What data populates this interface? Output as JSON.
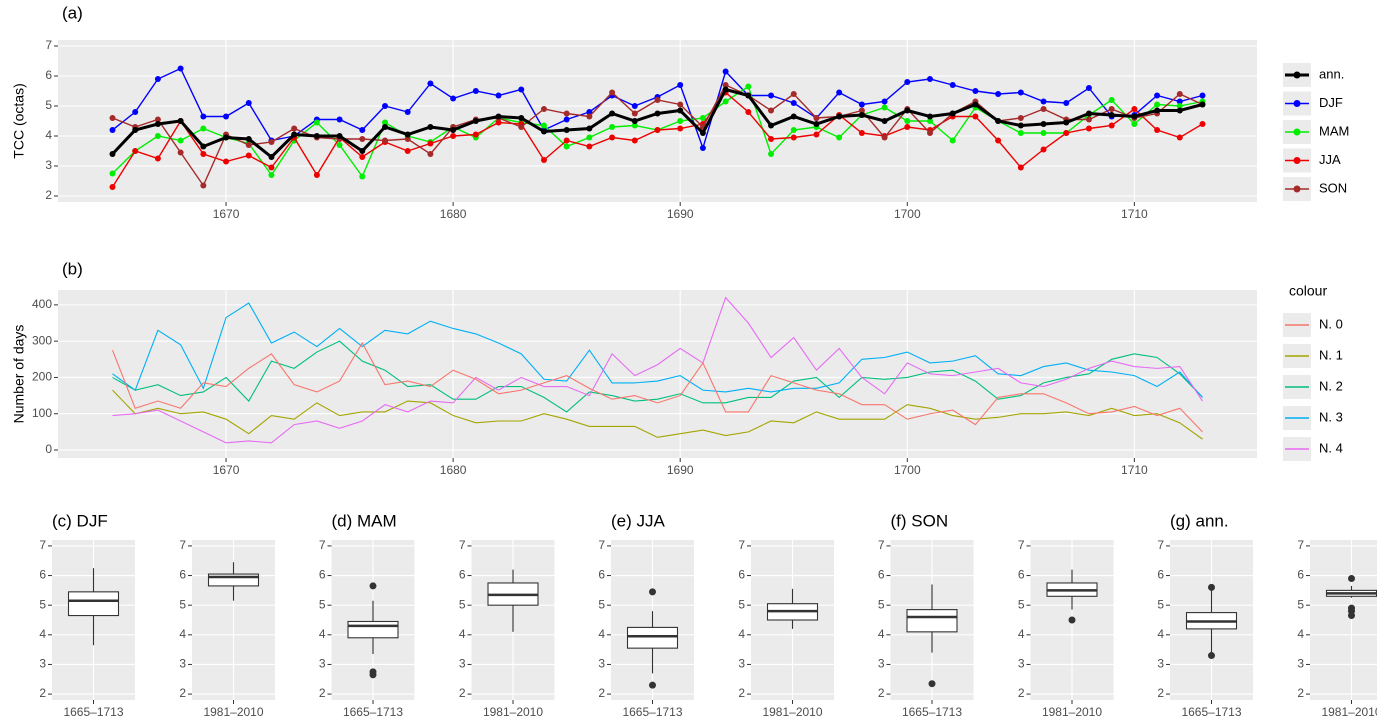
{
  "chart_data": [
    {
      "type": "line",
      "title": "(a)",
      "y_label": "TCC (octas)",
      "points": true,
      "grid": true,
      "x": [
        1665,
        1666,
        1667,
        1668,
        1669,
        1670,
        1671,
        1672,
        1673,
        1674,
        1675,
        1676,
        1677,
        1678,
        1679,
        1680,
        1681,
        1682,
        1683,
        1684,
        1685,
        1686,
        1687,
        1688,
        1689,
        1690,
        1691,
        1692,
        1693,
        1694,
        1695,
        1696,
        1697,
        1698,
        1699,
        1700,
        1701,
        1702,
        1703,
        1704,
        1705,
        1706,
        1707,
        1708,
        1709,
        1710,
        1711,
        1712,
        1713
      ],
      "xlim": [
        1662.6,
        1715.4
      ],
      "xticks": [
        1670,
        1680,
        1690,
        1700,
        1710
      ],
      "ylim": [
        1.8,
        7.2
      ],
      "yticks": [
        2,
        3,
        4,
        5,
        6,
        7
      ],
      "series": [
        {
          "name": "ann.",
          "color": "#000000",
          "values": [
            3.4,
            4.2,
            4.4,
            4.5,
            3.65,
            3.95,
            3.9,
            3.3,
            4.05,
            4.0,
            4.0,
            3.5,
            4.3,
            4.05,
            4.3,
            4.2,
            4.5,
            4.65,
            4.6,
            4.15,
            4.2,
            4.25,
            4.75,
            4.5,
            4.75,
            4.85,
            4.1,
            5.55,
            5.35,
            4.35,
            4.65,
            4.4,
            4.65,
            4.7,
            4.5,
            4.85,
            4.65,
            4.75,
            5.05,
            4.5,
            4.35,
            4.4,
            4.45,
            4.75,
            4.7,
            4.65,
            4.85,
            4.85,
            5.05
          ]
        },
        {
          "name": "DJF",
          "color": "#0000ff",
          "values": [
            4.2,
            4.8,
            5.9,
            6.25,
            4.65,
            4.65,
            5.1,
            3.85,
            4.0,
            4.55,
            4.55,
            4.2,
            5.0,
            4.8,
            5.75,
            5.25,
            5.5,
            5.35,
            5.55,
            4.2,
            4.55,
            4.8,
            5.35,
            5.0,
            5.3,
            5.7,
            3.6,
            6.15,
            5.35,
            5.35,
            5.1,
            4.6,
            5.45,
            5.05,
            5.15,
            5.8,
            5.9,
            5.7,
            5.5,
            5.4,
            5.45,
            5.15,
            5.1,
            5.6,
            4.65,
            4.7,
            5.35,
            5.15,
            5.35
          ]
        },
        {
          "name": "MAM",
          "color": "#00ee00",
          "values": [
            2.75,
            3.5,
            4.0,
            3.85,
            4.25,
            3.95,
            3.75,
            2.7,
            3.85,
            4.45,
            3.7,
            2.65,
            4.45,
            4.0,
            3.8,
            4.3,
            3.95,
            4.6,
            4.45,
            4.35,
            3.65,
            3.95,
            4.3,
            4.35,
            4.2,
            4.5,
            4.6,
            5.15,
            5.65,
            3.4,
            4.2,
            4.3,
            3.95,
            4.7,
            4.95,
            4.5,
            4.5,
            3.85,
            4.95,
            4.5,
            4.1,
            4.1,
            4.1,
            4.7,
            5.2,
            4.4,
            5.05,
            5.0,
            5.15
          ]
        },
        {
          "name": "JJA",
          "color": "#ee0000",
          "values": [
            2.3,
            3.5,
            3.25,
            4.5,
            3.4,
            3.15,
            3.35,
            2.95,
            3.95,
            2.7,
            3.95,
            3.3,
            3.8,
            3.5,
            3.75,
            4.0,
            4.05,
            4.45,
            4.4,
            3.2,
            3.85,
            3.65,
            3.95,
            3.85,
            4.2,
            4.25,
            4.4,
            5.45,
            4.8,
            3.9,
            3.95,
            4.05,
            4.7,
            4.1,
            4.0,
            4.3,
            4.2,
            4.65,
            4.65,
            3.85,
            2.95,
            3.55,
            4.1,
            4.25,
            4.35,
            4.9,
            4.2,
            3.95,
            4.4
          ]
        },
        {
          "name": "SON",
          "color": "#a52a2a",
          "values": [
            4.6,
            4.3,
            4.55,
            3.45,
            2.35,
            4.05,
            3.7,
            3.8,
            4.25,
            3.95,
            3.9,
            3.9,
            3.85,
            3.9,
            3.4,
            4.3,
            4.55,
            4.6,
            4.3,
            4.9,
            4.75,
            4.65,
            5.45,
            4.75,
            5.2,
            5.05,
            4.3,
            5.7,
            5.35,
            4.85,
            5.4,
            4.6,
            4.65,
            4.85,
            3.95,
            4.9,
            4.1,
            4.75,
            5.15,
            4.5,
            4.6,
            4.9,
            4.55,
            4.55,
            4.9,
            4.6,
            4.75,
            5.4,
            5.05
          ]
        }
      ]
    },
    {
      "type": "line",
      "title": "(b)",
      "y_label": "Number of days",
      "legend_title": "colour",
      "points": false,
      "grid": true,
      "x": [
        1665,
        1666,
        1667,
        1668,
        1669,
        1670,
        1671,
        1672,
        1673,
        1674,
        1675,
        1676,
        1677,
        1678,
        1679,
        1680,
        1681,
        1682,
        1683,
        1684,
        1685,
        1686,
        1687,
        1688,
        1689,
        1690,
        1691,
        1692,
        1693,
        1694,
        1695,
        1696,
        1697,
        1698,
        1699,
        1700,
        1701,
        1702,
        1703,
        1704,
        1705,
        1706,
        1707,
        1708,
        1709,
        1710,
        1711,
        1712,
        1713
      ],
      "xlim": [
        1662.6,
        1715.4
      ],
      "xticks": [
        1670,
        1680,
        1690,
        1700,
        1710
      ],
      "ylim": [
        -22,
        441
      ],
      "yticks": [
        0,
        100,
        200,
        300,
        400
      ],
      "series": [
        {
          "name": "N. 0",
          "color": "#F8766D",
          "values": [
            275,
            115,
            135,
            115,
            185,
            175,
            225,
            265,
            180,
            160,
            190,
            295,
            180,
            190,
            175,
            220,
            195,
            155,
            165,
            185,
            205,
            170,
            140,
            150,
            130,
            150,
            240,
            105,
            105,
            205,
            185,
            165,
            155,
            125,
            125,
            85,
            100,
            110,
            70,
            145,
            155,
            155,
            130,
            100,
            105,
            120,
            95,
            115,
            50
          ]
        },
        {
          "name": "N. 1",
          "color": "#A3A500",
          "values": [
            165,
            100,
            115,
            100,
            105,
            85,
            45,
            95,
            85,
            130,
            95,
            105,
            105,
            135,
            130,
            95,
            75,
            80,
            80,
            100,
            85,
            65,
            65,
            65,
            35,
            45,
            55,
            40,
            50,
            80,
            75,
            105,
            85,
            85,
            85,
            125,
            115,
            95,
            85,
            90,
            100,
            100,
            105,
            95,
            115,
            95,
            100,
            75,
            30
          ]
        },
        {
          "name": "N. 2",
          "color": "#00BF7D",
          "values": [
            200,
            165,
            180,
            150,
            160,
            200,
            135,
            245,
            225,
            270,
            300,
            245,
            220,
            175,
            180,
            140,
            140,
            175,
            175,
            145,
            105,
            160,
            150,
            135,
            140,
            155,
            130,
            130,
            145,
            145,
            190,
            200,
            145,
            200,
            195,
            200,
            215,
            220,
            190,
            140,
            150,
            185,
            200,
            210,
            250,
            265,
            255,
            210,
            145
          ]
        },
        {
          "name": "N. 3",
          "color": "#00B0F6",
          "values": [
            210,
            165,
            330,
            290,
            170,
            365,
            405,
            295,
            325,
            285,
            335,
            285,
            330,
            320,
            355,
            335,
            320,
            295,
            265,
            195,
            190,
            275,
            185,
            185,
            190,
            205,
            165,
            160,
            170,
            160,
            170,
            170,
            185,
            250,
            255,
            270,
            240,
            245,
            260,
            210,
            205,
            230,
            240,
            220,
            215,
            205,
            175,
            215,
            145
          ]
        },
        {
          "name": "N. 4",
          "color": "#E76BF3",
          "values": [
            95,
            100,
            110,
            80,
            50,
            20,
            25,
            20,
            70,
            80,
            60,
            80,
            125,
            105,
            135,
            130,
            200,
            165,
            200,
            175,
            175,
            150,
            265,
            205,
            235,
            280,
            240,
            420,
            350,
            255,
            310,
            220,
            280,
            200,
            155,
            240,
            210,
            205,
            215,
            225,
            185,
            175,
            195,
            225,
            245,
            230,
            225,
            230,
            135
          ]
        }
      ]
    },
    {
      "type": "box",
      "title": "(c) DJF",
      "categories": [
        "1665–1713",
        "1981–2010"
      ],
      "ylim": [
        1.8,
        7.2
      ],
      "yticks": [
        2,
        3,
        4,
        5,
        6,
        7
      ],
      "boxes": [
        {
          "whislo": 3.65,
          "q1": 4.65,
          "med": 5.15,
          "q3": 5.45,
          "whishi": 6.25
        },
        {
          "whislo": 5.15,
          "q1": 5.65,
          "med": 5.95,
          "q3": 6.05,
          "whishi": 6.45
        }
      ]
    },
    {
      "type": "box",
      "title": "(d) MAM",
      "categories": [
        "1665–1713",
        "1981–2010"
      ],
      "ylim": [
        1.8,
        7.2
      ],
      "yticks": [
        2,
        3,
        4,
        5,
        6,
        7
      ],
      "boxes": [
        {
          "whislo": 3.35,
          "q1": 3.9,
          "med": 4.3,
          "q3": 4.45,
          "whishi": 5.15,
          "fliers": [
            5.65,
            2.75,
            2.65
          ]
        },
        {
          "whislo": 4.1,
          "q1": 5.0,
          "med": 5.35,
          "q3": 5.75,
          "whishi": 6.2
        }
      ]
    },
    {
      "type": "box",
      "title": "(e) JJA",
      "categories": [
        "1665–1713",
        "1981–2010"
      ],
      "ylim": [
        1.8,
        7.2
      ],
      "yticks": [
        2,
        3,
        4,
        5,
        6,
        7
      ],
      "boxes": [
        {
          "whislo": 2.7,
          "q1": 3.55,
          "med": 3.95,
          "q3": 4.25,
          "whishi": 4.8,
          "fliers": [
            5.45,
            2.3
          ]
        },
        {
          "whislo": 4.2,
          "q1": 4.5,
          "med": 4.8,
          "q3": 5.05,
          "whishi": 5.55
        }
      ]
    },
    {
      "type": "box",
      "title": "(f) SON",
      "categories": [
        "1665–1713",
        "1981–2010"
      ],
      "ylim": [
        1.8,
        7.2
      ],
      "yticks": [
        2,
        3,
        4,
        5,
        6,
        7
      ],
      "boxes": [
        {
          "whislo": 3.4,
          "q1": 4.1,
          "med": 4.6,
          "q3": 4.85,
          "whishi": 5.7,
          "fliers": [
            2.35
          ]
        },
        {
          "whislo": 4.85,
          "q1": 5.3,
          "med": 5.5,
          "q3": 5.75,
          "whishi": 6.2,
          "fliers": [
            4.5
          ]
        }
      ]
    },
    {
      "type": "box",
      "title": "(g) ann.",
      "categories": [
        "1665–1713",
        "1981–2010"
      ],
      "ylim": [
        1.8,
        7.2
      ],
      "yticks": [
        2,
        3,
        4,
        5,
        6,
        7
      ],
      "boxes": [
        {
          "whislo": 3.4,
          "q1": 4.2,
          "med": 4.45,
          "q3": 4.75,
          "whishi": 5.55,
          "fliers": [
            5.6,
            3.3
          ]
        },
        {
          "whislo": 5.25,
          "q1": 5.3,
          "med": 5.4,
          "q3": 5.5,
          "whishi": 5.65,
          "fliers": [
            5.9,
            4.9,
            4.8,
            4.65
          ]
        }
      ]
    }
  ]
}
